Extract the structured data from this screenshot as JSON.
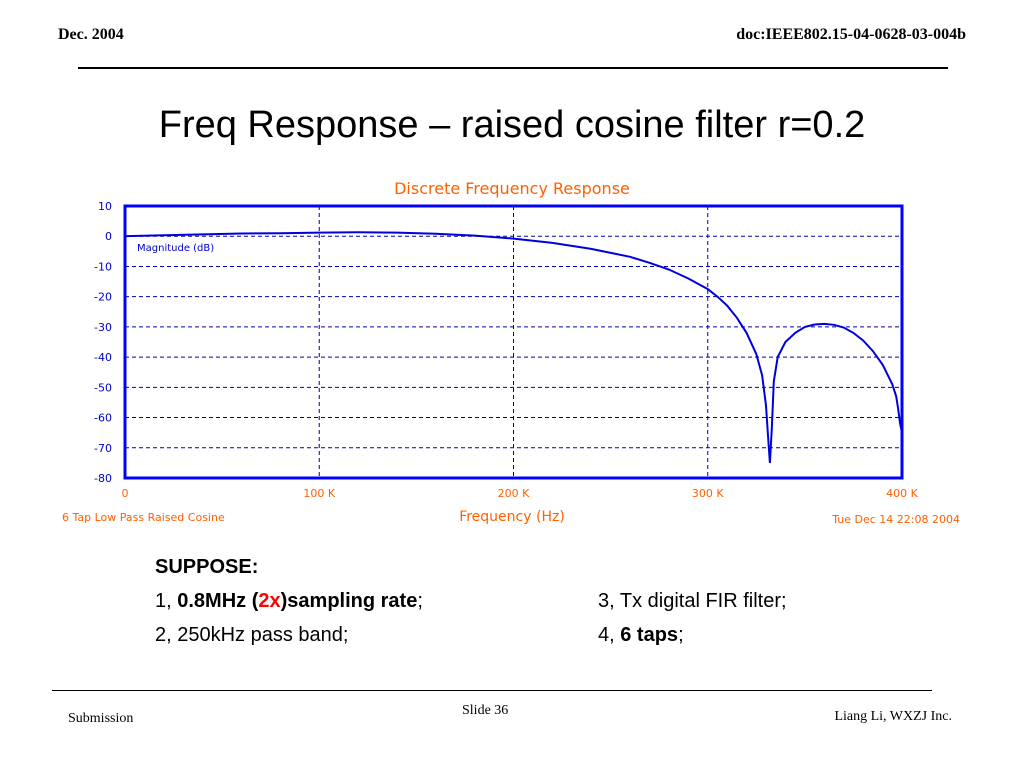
{
  "header": {
    "date": "Dec.  2004",
    "doc_id": "doc:IEEE802.15-04-0628-03-004b"
  },
  "slide_title": "Freq Response – raised cosine filter r=0.2",
  "chart_data": {
    "type": "line",
    "title": "Discrete Frequency Response",
    "xlabel": "Frequency (Hz)",
    "ylabel": "",
    "series_label": "Magnitude (dB)",
    "footer_left": "6 Tap Low Pass Raised Cosine",
    "footer_right": "Tue Dec 14 22:08 2004",
    "xlim": [
      0,
      400000
    ],
    "ylim": [
      -80,
      10
    ],
    "x_ticks": [
      0,
      100000,
      200000,
      300000,
      400000
    ],
    "x_tick_labels": [
      "0",
      "100 K",
      "200 K",
      "300 K",
      "400 K"
    ],
    "y_ticks": [
      10,
      0,
      -10,
      -20,
      -30,
      -40,
      -50,
      -60,
      -70,
      -80
    ],
    "y_tick_labels": [
      "10",
      "0",
      "-10",
      "-20",
      "-30",
      "-40",
      "-50",
      "-60",
      "-70",
      "-80"
    ],
    "grid": true,
    "colors": {
      "line": "#0000dd",
      "axis": "#0000ff",
      "grid": "#0000aa",
      "text": "#ff6000",
      "tick_text": "#0000cc"
    },
    "series": [
      {
        "name": "Magnitude (dB)",
        "x": [
          0,
          20000,
          40000,
          60000,
          80000,
          100000,
          120000,
          140000,
          160000,
          180000,
          200000,
          220000,
          240000,
          260000,
          270000,
          280000,
          290000,
          300000,
          305000,
          310000,
          315000,
          320000,
          325000,
          328000,
          330000,
          331000,
          332000,
          333000,
          334000,
          336000,
          340000,
          345000,
          350000,
          355000,
          360000,
          365000,
          370000,
          375000,
          380000,
          385000,
          390000,
          395000,
          397000,
          398000,
          399000,
          400000
        ],
        "values": [
          0,
          0.3,
          0.6,
          0.9,
          1.0,
          1.2,
          1.3,
          1.2,
          0.8,
          0.2,
          -0.8,
          -2.2,
          -4.2,
          -6.8,
          -8.8,
          -11.0,
          -14.0,
          -17.5,
          -20.0,
          -23.0,
          -27.0,
          -32.0,
          -39.0,
          -46.0,
          -56.0,
          -66.0,
          -75.0,
          -63.0,
          -48.0,
          -40.0,
          -35.0,
          -32.0,
          -30.0,
          -29.2,
          -29.0,
          -29.3,
          -30.2,
          -32.0,
          -34.5,
          -38.0,
          -42.5,
          -49.0,
          -53.0,
          -57.0,
          -62.0,
          -65.0
        ]
      }
    ]
  },
  "suppose": {
    "heading": "SUPPOSE:",
    "item1_prefix": "1, ",
    "item1_bold_a": "0.8MHz (",
    "item1_red": "2x",
    "item1_bold_b": ")sampling rate",
    "item1_suffix": ";",
    "item2": "2, 250kHz pass band;",
    "item3": "3, Tx digital FIR filter;",
    "item4_prefix": "4, ",
    "item4_bold": "6 taps",
    "item4_suffix": ";"
  },
  "footer": {
    "left": "Submission",
    "center": "Slide 36",
    "right": "Liang Li, WXZJ Inc."
  }
}
